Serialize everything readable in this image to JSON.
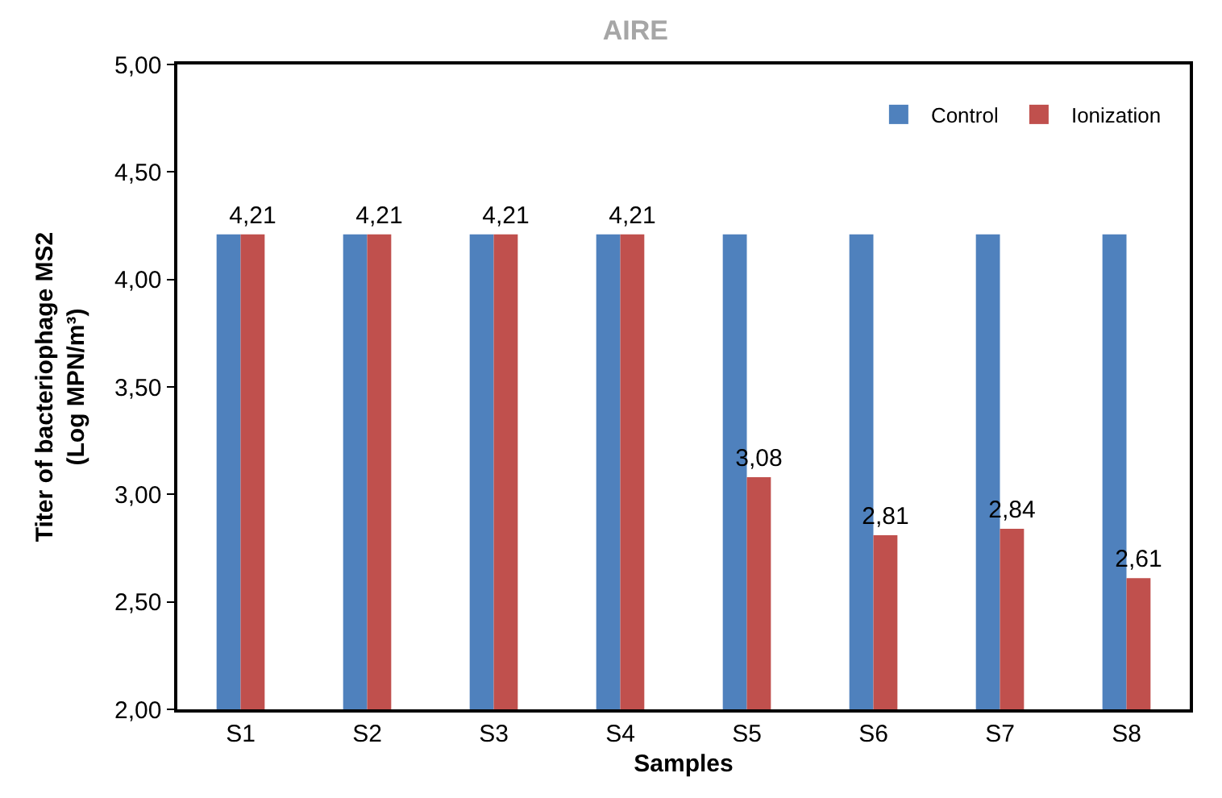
{
  "chart_data": {
    "type": "bar",
    "title": "AIRE",
    "xlabel": "Samples",
    "ylabel": "Titer of bacteriophage MS2\n(Log MPN/m³)",
    "categories": [
      "S1",
      "S2",
      "S3",
      "S4",
      "S5",
      "S6",
      "S7",
      "S8"
    ],
    "series": [
      {
        "name": "Control",
        "color": "#4f81bd",
        "values": [
          4.21,
          4.21,
          4.21,
          4.21,
          4.21,
          4.21,
          4.21,
          4.21
        ]
      },
      {
        "name": "Ionization",
        "color": "#c0504d",
        "values": [
          4.21,
          4.21,
          4.21,
          4.21,
          3.08,
          2.81,
          2.84,
          2.61
        ],
        "value_labels": [
          "4,21",
          "4,21",
          "4,21",
          "4,21",
          "3,08",
          "2,81",
          "2,84",
          "2,61"
        ]
      }
    ],
    "ylim": [
      2,
      5
    ],
    "yticks": [
      {
        "value": 2,
        "label": "2,00"
      },
      {
        "value": 2.5,
        "label": "2,50"
      },
      {
        "value": 3,
        "label": "3,00"
      },
      {
        "value": 3.5,
        "label": "3,50"
      },
      {
        "value": 4,
        "label": "4,00"
      },
      {
        "value": 4.5,
        "label": "4,50"
      },
      {
        "value": 5,
        "label": "5,00"
      }
    ],
    "grid": false,
    "legend": "top right"
  }
}
